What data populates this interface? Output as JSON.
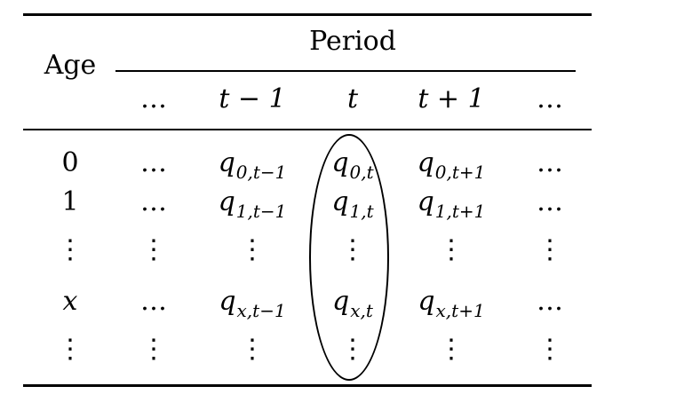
{
  "table": {
    "header": {
      "stub": "Age",
      "group": "Period",
      "columns": [
        "…",
        "t − 1",
        "t",
        "t + 1",
        "…"
      ]
    },
    "rows": [
      {
        "age": "0",
        "cells": [
          {
            "text": "…"
          },
          {
            "base": "q",
            "sub": "0,t−1"
          },
          {
            "base": "q",
            "sub": "0,t"
          },
          {
            "base": "q",
            "sub": "0,t+1"
          },
          {
            "text": "…"
          }
        ]
      },
      {
        "age": "1",
        "cells": [
          {
            "text": "…"
          },
          {
            "base": "q",
            "sub": "1,t−1"
          },
          {
            "base": "q",
            "sub": "1,t"
          },
          {
            "base": "q",
            "sub": "1,t+1"
          },
          {
            "text": "…"
          }
        ]
      },
      {
        "age": "⋮",
        "cells": [
          {
            "text": "⋮"
          },
          {
            "text": "⋮"
          },
          {
            "text": "⋮"
          },
          {
            "text": "⋮"
          },
          {
            "text": "⋮"
          }
        ]
      },
      {
        "age": "x",
        "cells": [
          {
            "text": "…"
          },
          {
            "base": "q",
            "sub": "x,t−1"
          },
          {
            "base": "q",
            "sub": "x,t"
          },
          {
            "base": "q",
            "sub": "x,t+1"
          },
          {
            "text": "…"
          }
        ]
      },
      {
        "age": "⋮",
        "cells": [
          {
            "text": "⋮"
          },
          {
            "text": "⋮"
          },
          {
            "text": "⋮"
          },
          {
            "text": "⋮"
          },
          {
            "text": "⋮"
          }
        ]
      }
    ]
  }
}
